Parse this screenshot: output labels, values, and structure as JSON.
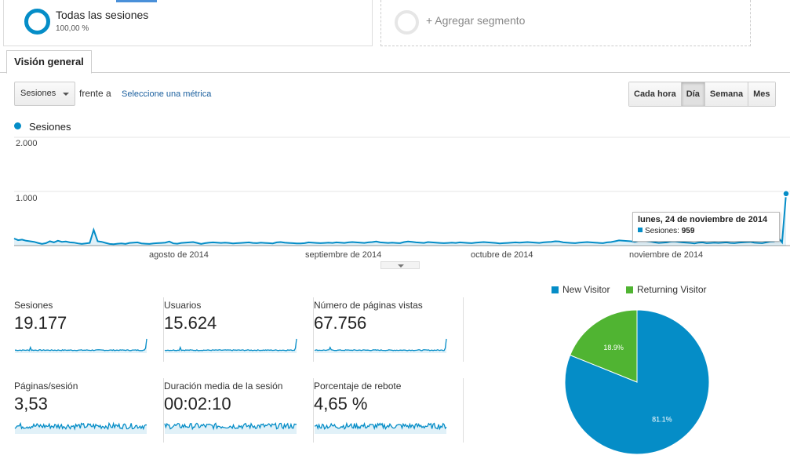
{
  "segments": {
    "active": {
      "title": "Todas las sesiones",
      "subtitle": "100,00 %"
    },
    "add_label": "+ Agregar segmento"
  },
  "tabs": [
    {
      "label": "Visión general"
    }
  ],
  "controls": {
    "metric_select": "Sesiones",
    "versus_text": "frente a",
    "select_metric_link": "Seleccione una métrica",
    "granularity": [
      "Cada hora",
      "Día",
      "Semana",
      "Mes"
    ],
    "granularity_active": "Día"
  },
  "colors": {
    "accent": "#058dc7",
    "new_visitor": "#058dc7",
    "returning_visitor": "#50b432"
  },
  "chart_data": {
    "type": "line",
    "series": [
      {
        "name": "Sesiones",
        "values": [
          130,
          100,
          110,
          90,
          80,
          70,
          50,
          30,
          45,
          80,
          60,
          90,
          70,
          75,
          60,
          55,
          40,
          30,
          40,
          50,
          290,
          80,
          70,
          50,
          30,
          25,
          35,
          40,
          30,
          50,
          55,
          60,
          40,
          35,
          30,
          40,
          45,
          50,
          55,
          75,
          40,
          35,
          50,
          55,
          60,
          65,
          50,
          30,
          45,
          55,
          60,
          55,
          50,
          55,
          50,
          40,
          45,
          50,
          55,
          60,
          50,
          45,
          55,
          50,
          45,
          40,
          60,
          65,
          55,
          50,
          45,
          40,
          40,
          45,
          60,
          55,
          50,
          45,
          50,
          55,
          50,
          60,
          55,
          50,
          60,
          65,
          60,
          55,
          50,
          60,
          65,
          75,
          60,
          55,
          50,
          55,
          50,
          45,
          65,
          75,
          70,
          60,
          55,
          50,
          65,
          60,
          55,
          50,
          45,
          50,
          55,
          50,
          60,
          55,
          50,
          45,
          55,
          60,
          65,
          60,
          55,
          50,
          40,
          45,
          50,
          55,
          60,
          55,
          60,
          65,
          60,
          55,
          50,
          60,
          65,
          70,
          80,
          75,
          60,
          55,
          50,
          45,
          55,
          60,
          65,
          60,
          55,
          50,
          45,
          60,
          65,
          80,
          95,
          90,
          85,
          80,
          70,
          90,
          100,
          85,
          75,
          60,
          50,
          55,
          60,
          75,
          80,
          70,
          60,
          55,
          50,
          40,
          55,
          60,
          45,
          50,
          55,
          50,
          55,
          60,
          50,
          45,
          55,
          60,
          65,
          70,
          55,
          50,
          45,
          60,
          75,
          80,
          150,
          60,
          959
        ]
      }
    ],
    "x_labels": [
      "agosto de 2014",
      "septiembre de 2014",
      "octubre de 2014",
      "noviembre de 2014"
    ],
    "y_ticks": [
      "1.000",
      "2.000"
    ],
    "ylim": [
      0,
      2000
    ],
    "grid": true,
    "tooltip": {
      "title": "lunes, 24 de noviembre de 2014",
      "series": "Sesiones:",
      "value": "959"
    }
  },
  "metrics": [
    {
      "label": "Sesiones",
      "value": "19.177"
    },
    {
      "label": "Usuarios",
      "value": "15.624"
    },
    {
      "label": "Número de páginas vistas",
      "value": "67.756"
    },
    {
      "label": "Páginas/sesión",
      "value": "3,53"
    },
    {
      "label": "Duración media de la sesión",
      "value": "00:02:10"
    },
    {
      "label": "Porcentaje de rebote",
      "value": "4,65 %"
    }
  ],
  "pie_chart": {
    "type": "pie",
    "legend": [
      "New Visitor",
      "Returning Visitor"
    ],
    "slices": [
      {
        "name": "New Visitor",
        "value": 81.1,
        "label": "81.1%"
      },
      {
        "name": "Returning Visitor",
        "value": 18.9,
        "label": "18.9%"
      }
    ]
  }
}
